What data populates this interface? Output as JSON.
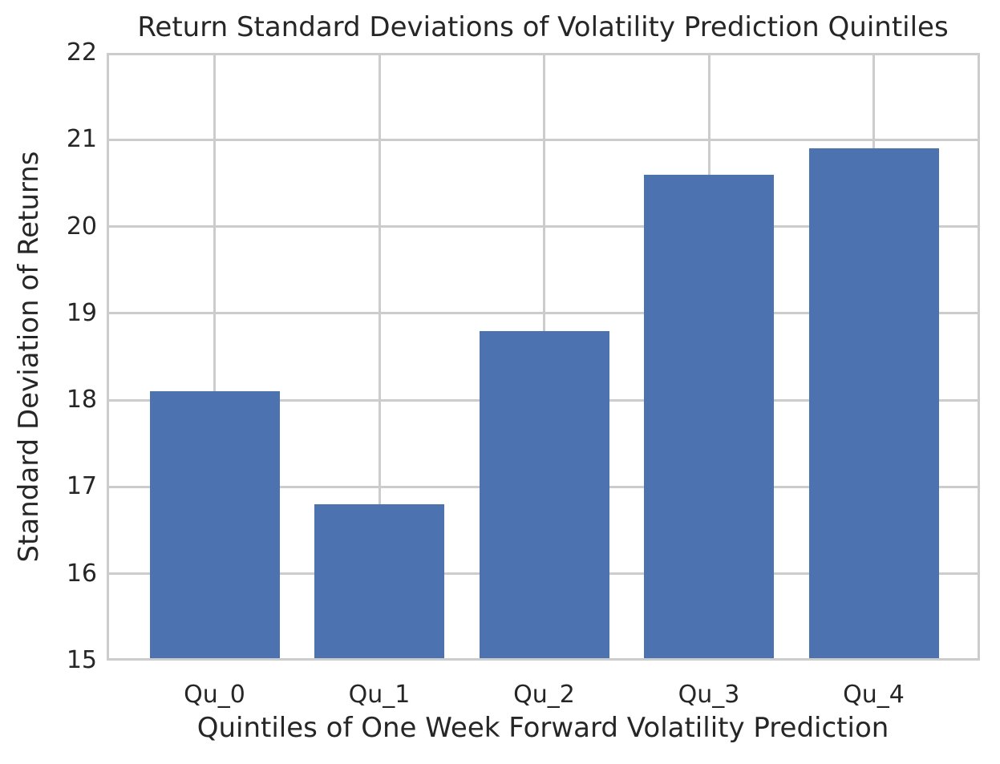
{
  "chart_data": {
    "type": "bar",
    "title": "Return Standard Deviations of Volatility Prediction Quintiles",
    "xlabel": "Quintiles of One Week Forward Volatility Prediction",
    "ylabel": "Standard Deviation of Returns",
    "categories": [
      "Qu_0",
      "Qu_1",
      "Qu_2",
      "Qu_3",
      "Qu_4"
    ],
    "values": [
      18.1,
      16.8,
      18.8,
      20.6,
      20.9
    ],
    "ylim": [
      15,
      22
    ],
    "yticks": [
      15,
      16,
      17,
      18,
      19,
      20,
      21,
      22
    ],
    "grid": true,
    "legend_position": "none",
    "colors": {
      "bar": "#4c72b0",
      "grid": "#cccccc",
      "text": "#262626",
      "background": "#ffffff"
    }
  }
}
